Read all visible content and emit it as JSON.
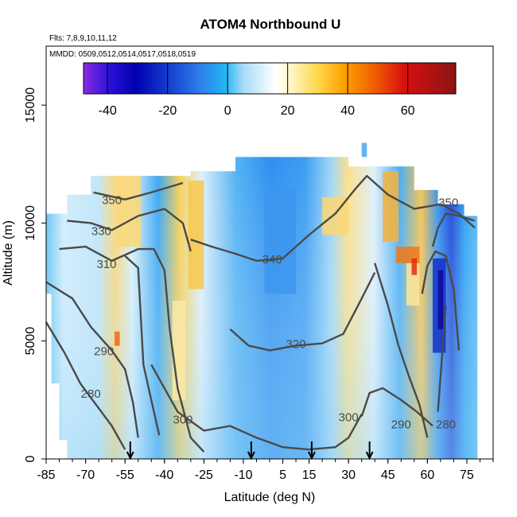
{
  "chart_data": {
    "type": "heatmap",
    "title": "ATOM4 Northbound U",
    "flights_label": "Flts: 7,8,9,10,11,12",
    "dates_label": "MMDD: 0509,0512,0514,0517,0518,0519",
    "xlabel": "Latitude (deg N)",
    "ylabel": "Altitude (m)",
    "xlim": [
      -85,
      85
    ],
    "ylim": [
      0,
      17500
    ],
    "x_ticks": [
      -85,
      -70,
      -55,
      -40,
      -25,
      -10,
      5,
      15,
      30,
      45,
      60,
      75
    ],
    "x_tick_labels": [
      "-85",
      "-70",
      "-55",
      "-40",
      "-25",
      "-10",
      "5",
      "15",
      "30",
      "45",
      "60",
      "75"
    ],
    "y_ticks": [
      0,
      5000,
      10000,
      15000
    ],
    "y_tick_labels": [
      "0",
      "5000",
      "10000",
      "15000"
    ],
    "colorbar": {
      "range": [
        -48,
        76
      ],
      "ticks": [
        -40,
        -20,
        0,
        20,
        40,
        60
      ],
      "tick_labels": [
        "-40",
        "-20",
        "0",
        "20",
        "40",
        "60"
      ],
      "placement": "top-inside"
    },
    "contour_labels": [
      {
        "text": "350",
        "lat": -60,
        "alt": 10800
      },
      {
        "text": "330",
        "lat": -64,
        "alt": 9500
      },
      {
        "text": "310",
        "lat": -62,
        "alt": 8100
      },
      {
        "text": "340",
        "lat": 1,
        "alt": 8300
      },
      {
        "text": "320",
        "lat": 10,
        "alt": 4700
      },
      {
        "text": "290",
        "lat": -63,
        "alt": 4400
      },
      {
        "text": "280",
        "lat": -68,
        "alt": 2600
      },
      {
        "text": "300",
        "lat": -33,
        "alt": 1500
      },
      {
        "text": "300",
        "lat": 30,
        "alt": 1600
      },
      {
        "text": "290",
        "lat": 50,
        "alt": 1300
      },
      {
        "text": "280",
        "lat": 67,
        "alt": 1300
      },
      {
        "text": "350",
        "lat": 68,
        "alt": 10700
      }
    ],
    "profile_markers_lat": [
      -53,
      -7,
      16,
      38
    ]
  }
}
